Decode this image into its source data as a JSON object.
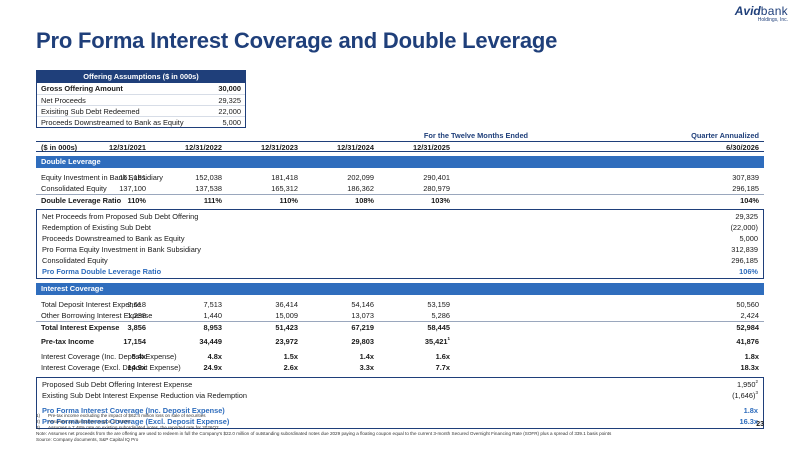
{
  "logo": {
    "brand": "Avid",
    "brand2": "bank",
    "sub": "Holdings, Inc."
  },
  "title": "Pro Forma Interest Coverage and Double Leverage",
  "offering": {
    "header": "Offering Assumptions ($ in 000s)",
    "rows": [
      {
        "label": "Gross Offering Amount",
        "value": "30,000",
        "bold": true
      },
      {
        "label": "Net Proceeds",
        "value": "29,325",
        "bold": false
      },
      {
        "label": "Exisiting Sub Debt Redeemed",
        "value": "22,000",
        "bold": false
      },
      {
        "label": "Proceeds Downstreamed to Bank as Equity",
        "value": "5,000",
        "bold": false
      }
    ]
  },
  "table": {
    "period_ttm": "For the Twelve Months Ended",
    "period_qa": "Quarter Annualized",
    "units": "($ in 000s)",
    "columns": [
      "12/31/2021",
      "12/31/2022",
      "12/31/2023",
      "12/31/2024",
      "12/31/2025",
      "6/30/2026"
    ],
    "double_leverage": {
      "header": "Double Leverage",
      "rows": [
        {
          "label": "Equity Investment in Bank Subsidiary",
          "values": [
            "151,181",
            "152,038",
            "181,418",
            "202,099",
            "290,401",
            "307,839"
          ]
        },
        {
          "label": "Consolidated Equity",
          "values": [
            "137,100",
            "137,538",
            "165,312",
            "186,362",
            "280,979",
            "296,185"
          ]
        },
        {
          "label": "Double Leverage Ratio",
          "values": [
            "110%",
            "111%",
            "110%",
            "108%",
            "103%",
            "104%"
          ]
        }
      ],
      "proforma_rows": [
        {
          "label": "Net Proceeds from Proposed Sub Debt Offering",
          "value": "29,325"
        },
        {
          "label": "Redemption of Existing Sub Debt",
          "value": "(22,000)"
        },
        {
          "label": "Proceeds Downstreamed to Bank as Equity",
          "value": "5,000"
        },
        {
          "label": "Pro Forma Equity Investment in Bank Subsidiary",
          "value": "312,839"
        },
        {
          "label": "Consolidated Equity",
          "value": "296,185"
        }
      ],
      "proforma_ratio": {
        "label": "Pro Forma Double Leverage Ratio",
        "value": "106%"
      }
    },
    "interest_coverage": {
      "header": "Interest Coverage",
      "deposit": {
        "label": "Total Deposit Interest Expense",
        "values": [
          "2,618",
          "7,513",
          "36,414",
          "54,146",
          "53,159",
          "50,560"
        ]
      },
      "other": {
        "label": "Other Borrowing Interest Expense",
        "values": [
          "1,238",
          "1,440",
          "15,009",
          "13,073",
          "5,286",
          "2,424"
        ]
      },
      "total": {
        "label": "Total Interest Expense",
        "values": [
          "3,856",
          "8,953",
          "51,423",
          "67,219",
          "58,445",
          "52,984"
        ]
      },
      "pretax": {
        "label": "Pre-tax Income",
        "values": [
          "17,154",
          "34,449",
          "23,972",
          "29,803",
          "35,421",
          "41,876"
        ],
        "sup_2025": "1"
      },
      "cov_inc": {
        "label": "Interest Coverage (Inc. Deposit Expense)",
        "values": [
          "5.4x",
          "4.8x",
          "1.5x",
          "1.4x",
          "1.6x",
          "1.8x"
        ]
      },
      "cov_exc": {
        "label": "Interest Coverage (Excl. Deposit Expense)",
        "values": [
          "14.9x",
          "24.9x",
          "2.6x",
          "3.3x",
          "7.7x",
          "18.3x"
        ]
      },
      "proposed": {
        "label": "Proposed Sub Debt Offering Interest Expense",
        "value": "1,950",
        "sup": "2"
      },
      "existing": {
        "label": "Existing Sub Debt Interest Expense Reduction via Redemption",
        "value": "(1,646)",
        "sup": "3"
      },
      "pf_inc": {
        "label": "Pro Forma Interest Coverage (Inc. Deposit Expense)",
        "value": "1.8x"
      },
      "pf_exc": {
        "label": "Pro Forma Interest Coverage (Excl. Deposit Expense)",
        "value": "16.3x"
      }
    }
  },
  "notes": [
    {
      "key": "1)",
      "text": "Pre-tax income excluding the impact of $62.4 million loss on sale of securities"
    },
    {
      "key": "2)",
      "text": "Assumes an illustrative coupon of 6.50%"
    },
    {
      "key": "3)",
      "text": "Assumes a 7.48% rate on existing subordinated notes, the reported rate for 2026Q2"
    },
    {
      "key": "",
      "text": "Note: Assumes net proceeds from the are offering are used to redeem in full the Company's $22.0 million of outstanding subordinated notes due 2029 paying a floating coupon equal to the current 3-month Secured Overnight Financing Rate (SOFR) plus a spread of 339.1 basis points"
    },
    {
      "key": "",
      "text": "Source: Company documents, S&P Capital IQ Pro"
    }
  ],
  "page_number": "23"
}
